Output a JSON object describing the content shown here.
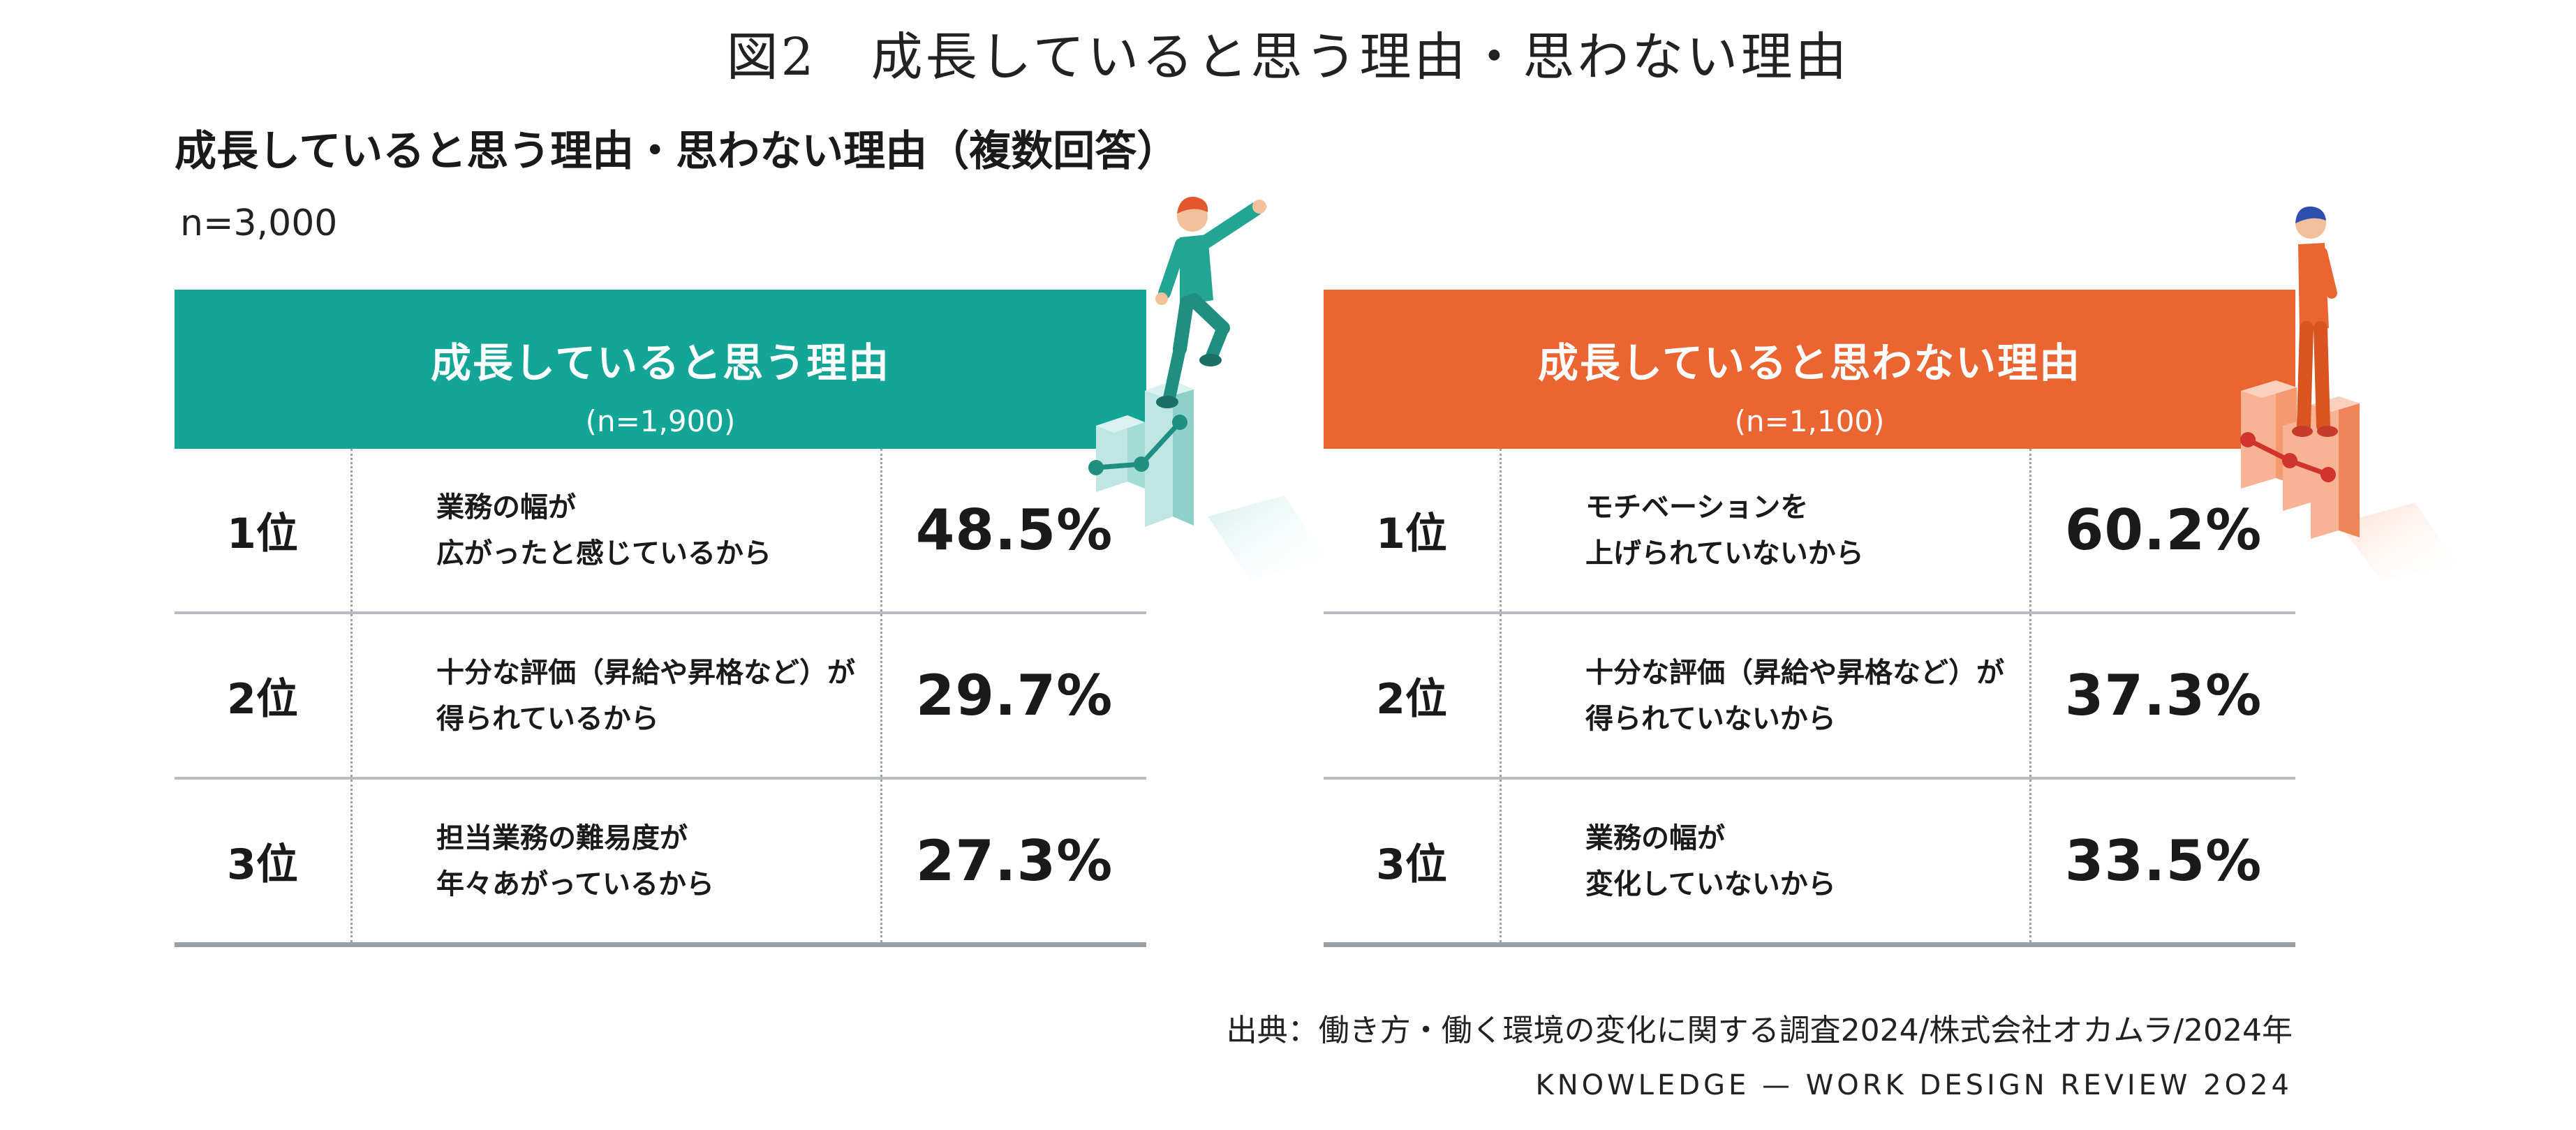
{
  "figure_title": "図2　成長していると思う理由・思わない理由",
  "chart_title": "成長していると思う理由・思わない理由（複数回答）",
  "total_n": "n=3,000",
  "colors": {
    "grow": "#13a595",
    "notgrow": "#eb6532",
    "divider": "#b8bcc2"
  },
  "chart_data": [
    {
      "type": "table",
      "title": "成長していると思う理由",
      "n": "(n=1,900)",
      "rows": [
        {
          "rank": "1位",
          "line1": "業務の幅が",
          "line2": "広がったと感じているから",
          "value": 48.5,
          "value_label": "48.5%"
        },
        {
          "rank": "2位",
          "line1": "十分な評価（昇給や昇格など）が",
          "line2": "得られているから",
          "value": 29.7,
          "value_label": "29.7%"
        },
        {
          "rank": "3位",
          "line1": "担当業務の難易度が",
          "line2": "年々あがっているから",
          "value": 27.3,
          "value_label": "27.3%"
        }
      ]
    },
    {
      "type": "table",
      "title": "成長していると思わない理由",
      "n": "(n=1,100)",
      "rows": [
        {
          "rank": "1位",
          "line1": "モチベーションを",
          "line2": "上げられていないから",
          "value": 60.2,
          "value_label": "60.2%"
        },
        {
          "rank": "2位",
          "line1": "十分な評価（昇給や昇格など）が",
          "line2": "得られていないから",
          "value": 37.3,
          "value_label": "37.3%"
        },
        {
          "rank": "3位",
          "line1": "業務の幅が",
          "line2": "変化していないから",
          "value": 33.5,
          "value_label": "33.5%"
        }
      ]
    }
  ],
  "source": "出典：働き方・働く環境の変化に関する調査2024/株式会社オカムラ/2024年",
  "brand": "KNOWLEDGE — WORK DESIGN REVIEW 2O24"
}
